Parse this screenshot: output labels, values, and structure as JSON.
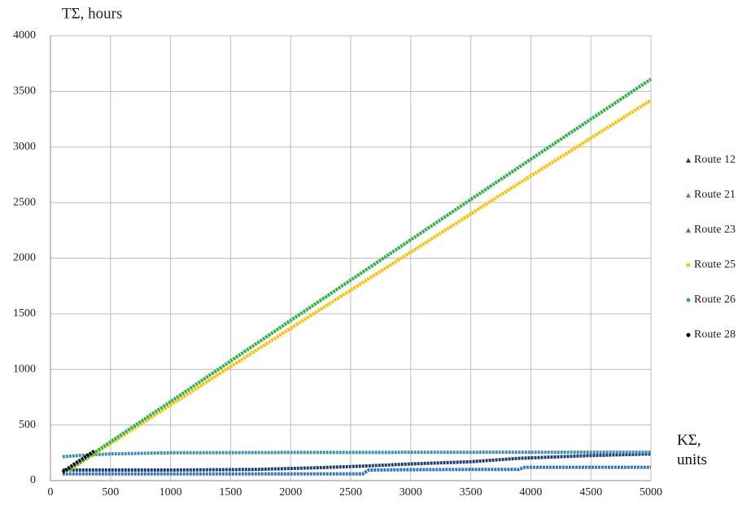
{
  "chart_data": {
    "type": "line",
    "y_label": "TΣ, hours",
    "x_label": "KΣ, units",
    "xlim": [
      0,
      5000
    ],
    "xticks": [
      0,
      500,
      1000,
      1500,
      2000,
      2500,
      3000,
      3500,
      4000,
      4500,
      5000
    ],
    "ylim": [
      0,
      4000
    ],
    "yticks": [
      0,
      500,
      1000,
      1500,
      2000,
      2500,
      3000,
      3500,
      4000
    ],
    "grid": true,
    "legend": "right",
    "series": [
      {
        "name": "Route 12",
        "color": "#1f3a6e",
        "x": [
          100,
          1000,
          1700,
          2200,
          2600,
          3000,
          3500,
          3900,
          4500,
          5000
        ],
        "values": [
          95,
          95,
          100,
          115,
          130,
          150,
          170,
          200,
          225,
          240
        ]
      },
      {
        "name": "Route 21",
        "color": "#3f8fb0",
        "x": [
          100,
          300,
          500,
          1000,
          2000,
          3000,
          4000,
          5000
        ],
        "values": [
          215,
          230,
          240,
          250,
          253,
          254,
          255,
          255
        ]
      },
      {
        "name": "Route 23",
        "color": "#2f78c0",
        "x": [
          100,
          1000,
          2000,
          2600,
          2650,
          3000,
          3500,
          3900,
          3950,
          5000
        ],
        "values": [
          60,
          60,
          60,
          60,
          95,
          98,
          100,
          100,
          120,
          120
        ]
      },
      {
        "name": "Route 25",
        "color": "#ffc000",
        "x": [
          150,
          1000,
          2000,
          3000,
          4000,
          5000
        ],
        "values": [
          90,
          680,
          1370,
          2055,
          2740,
          3420
        ]
      },
      {
        "name": "Route 26",
        "color": "#2db34a",
        "x": [
          150,
          1000,
          2000,
          3000,
          4000,
          5000
        ],
        "values": [
          95,
          710,
          1440,
          2165,
          2890,
          3610
        ]
      },
      {
        "name": "Route 28",
        "color": "#000000",
        "x": [
          100,
          200,
          300,
          370
        ],
        "values": [
          75,
          150,
          220,
          270
        ]
      }
    ]
  }
}
